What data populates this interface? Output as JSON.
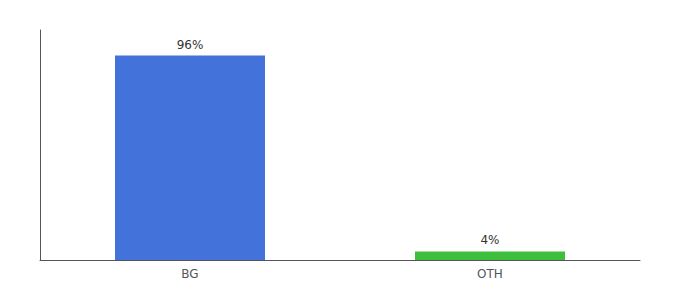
{
  "chart_data": {
    "type": "bar",
    "categories": [
      "BG",
      "OTH"
    ],
    "values": [
      96,
      4
    ],
    "value_labels": [
      "96%",
      "4%"
    ],
    "data_labels": true,
    "colors": [
      "#4472db",
      "#3dbf3d"
    ],
    "ylim": [
      0,
      108
    ],
    "tick_labels": "x",
    "grid": false
  }
}
